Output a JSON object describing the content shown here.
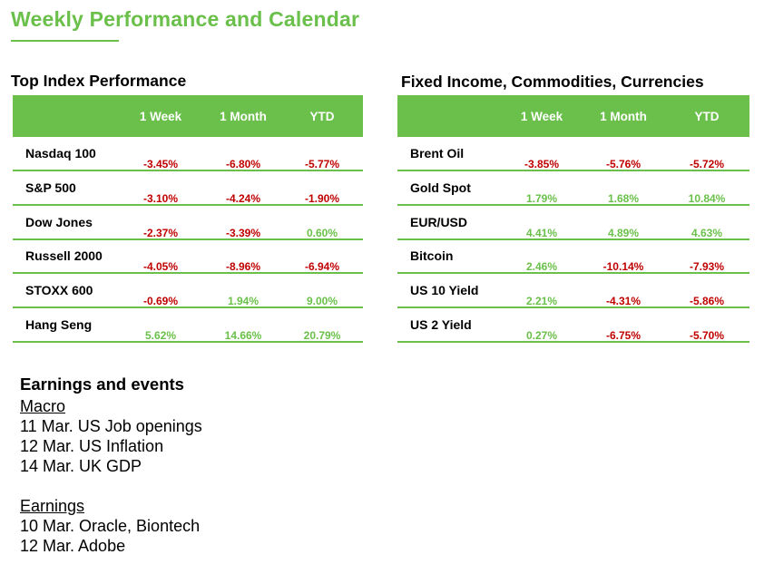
{
  "header": {
    "title": "Weekly Performance and Calendar"
  },
  "colors": {
    "accent": "#6ac04a",
    "negative": "#c00000",
    "positive": "#6ac04a"
  },
  "index_table": {
    "title": "Top Index Performance",
    "columns": [
      "1 Week",
      "1 Month",
      "YTD"
    ],
    "rows": [
      {
        "label": "Nasdaq 100",
        "values": [
          "-3.45%",
          "-6.80%",
          "-5.77%"
        ]
      },
      {
        "label": "S&P 500",
        "values": [
          "-3.10%",
          "-4.24%",
          "-1.90%"
        ]
      },
      {
        "label": "Dow Jones",
        "values": [
          "-2.37%",
          "-3.39%",
          "0.60%"
        ]
      },
      {
        "label": "Russell 2000",
        "values": [
          "-4.05%",
          "-8.96%",
          "-6.94%"
        ]
      },
      {
        "label": "STOXX 600",
        "values": [
          "-0.69%",
          "1.94%",
          "9.00%"
        ]
      },
      {
        "label": "Hang Seng",
        "values": [
          "5.62%",
          "14.66%",
          "20.79%"
        ]
      }
    ]
  },
  "fx_table": {
    "title": "Fixed Income, Commodities, Currencies",
    "columns": [
      "1 Week",
      "1 Month",
      "YTD"
    ],
    "rows": [
      {
        "label": "Brent Oil",
        "values": [
          "-3.85%",
          "-5.76%",
          "-5.72%"
        ]
      },
      {
        "label": "Gold Spot",
        "values": [
          "1.79%",
          "1.68%",
          "10.84%"
        ]
      },
      {
        "label": "EUR/USD",
        "values": [
          "4.41%",
          "4.89%",
          "4.63%"
        ]
      },
      {
        "label": "Bitcoin",
        "values": [
          "2.46%",
          "-10.14%",
          "-7.93%"
        ]
      },
      {
        "label": "US 10 Yield",
        "values": [
          "2.21%",
          "-4.31%",
          "-5.86%"
        ]
      },
      {
        "label": "US 2 Yield",
        "values": [
          "0.27%",
          "-6.75%",
          "-5.70%"
        ]
      }
    ]
  },
  "events": {
    "title": "Earnings and events",
    "macro": {
      "heading": "Macro",
      "items": [
        "11 Mar. US Job openings",
        "12 Mar. US Inflation",
        "14 Mar. UK GDP"
      ]
    },
    "earnings": {
      "heading": "Earnings",
      "items": [
        "10 Mar. Oracle, Biontech",
        "12 Mar. Adobe"
      ]
    }
  }
}
